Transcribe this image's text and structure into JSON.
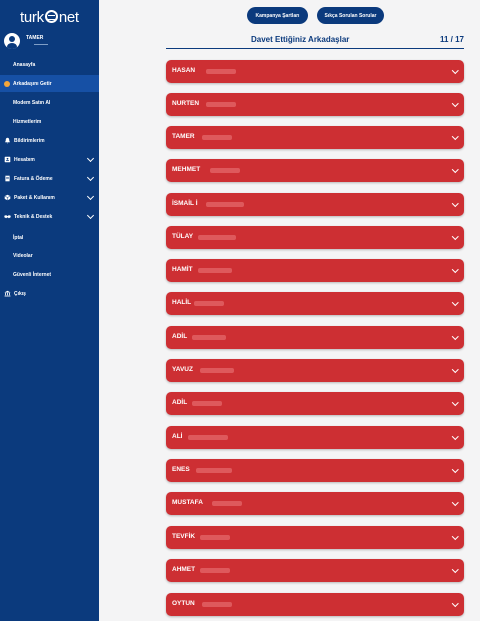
{
  "brand": {
    "left": "turk",
    "right": "net"
  },
  "user": {
    "name": "TAMER"
  },
  "sidebar": {
    "items": [
      {
        "label": "Anasayfa"
      },
      {
        "label": "Arkadaşını Getir"
      },
      {
        "label": "Modem Satın Al"
      },
      {
        "label": "Hizmetlerim"
      },
      {
        "label": "Bildirimlerim",
        "icon": "bell-icon"
      },
      {
        "label": "Hesabım",
        "icon": "id-card-icon"
      },
      {
        "label": "Fatura & Ödeme",
        "icon": "bill-icon"
      },
      {
        "label": "Paket & Kullanım",
        "icon": "package-icon"
      },
      {
        "label": "Teknik & Destek",
        "icon": "handshake-icon"
      },
      {
        "label": "İptal"
      },
      {
        "label": "Videolar"
      },
      {
        "label": "Güvenli İnternet"
      },
      {
        "label": "Çıkış",
        "icon": "bank-icon"
      }
    ]
  },
  "header": {
    "campaign_button": "Kampanya Şartları",
    "faq_button": "Sıkça Sorulan Sorular",
    "title": "Davet Ettiğiniz Arkadaşlar",
    "count": "11 / 17"
  },
  "friends": [
    {
      "name": "HASAN"
    },
    {
      "name": "NURTEN"
    },
    {
      "name": "TAMER"
    },
    {
      "name": "MEHMET"
    },
    {
      "name": "İSMAİL İ"
    },
    {
      "name": "TÜLAY"
    },
    {
      "name": "HAMİT"
    },
    {
      "name": "HALİL"
    },
    {
      "name": "ADİL"
    },
    {
      "name": "YAVUZ"
    },
    {
      "name": "ADİL"
    },
    {
      "name": "ALİ"
    },
    {
      "name": "ENES"
    },
    {
      "name": "MUSTAFA"
    },
    {
      "name": "TEVFİK"
    },
    {
      "name": "AHMET"
    },
    {
      "name": "OYTUN"
    }
  ],
  "colors": {
    "sidebar": "#0b3a7d",
    "row": "#cd2f33",
    "active": "#1650a5",
    "dot": "#f4a63a"
  }
}
